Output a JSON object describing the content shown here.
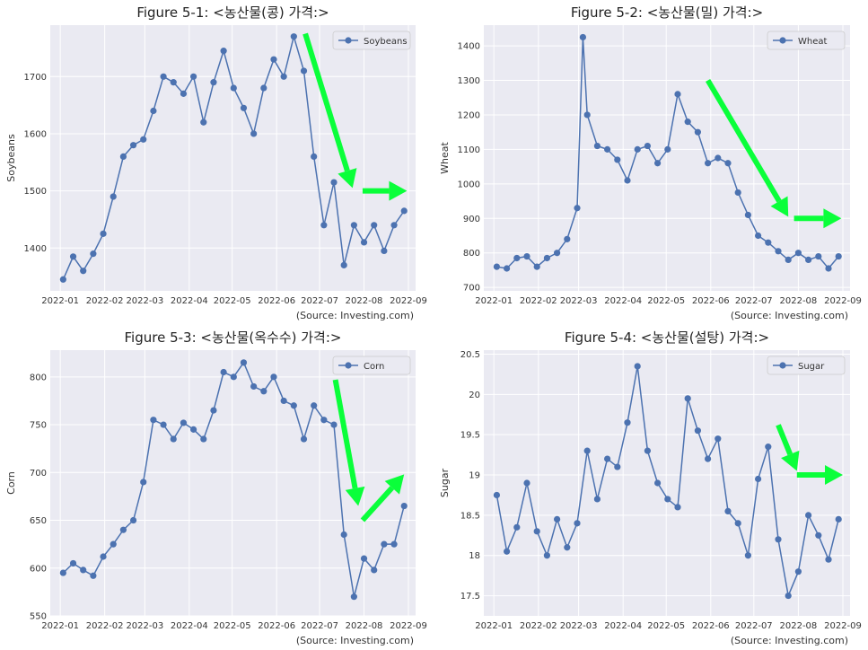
{
  "source_note": "(Source: Investing.com)",
  "x_ticks": [
    "2022-01",
    "2022-02",
    "2022-03",
    "2022-04",
    "2022-05",
    "2022-06",
    "2022-07",
    "2022-08",
    "2022-09"
  ],
  "colors": {
    "line": "#4c72b0",
    "arrow": "#0aff3a",
    "plot_bg": "#eaeaf2",
    "grid": "#ffffff"
  },
  "chart_data": [
    {
      "type": "line",
      "title": "Figure 5-1: <농산물(콩) 가격:>",
      "ylabel": "Soybeans",
      "legend": "Soybeans",
      "legend_placement": "top-right",
      "ylim": [
        1325,
        1790
      ],
      "yticks": [
        1400,
        1500,
        1600,
        1700
      ],
      "x": [
        "2022-01-03",
        "2022-01-10",
        "2022-01-17",
        "2022-01-24",
        "2022-01-31",
        "2022-02-07",
        "2022-02-14",
        "2022-02-21",
        "2022-02-28",
        "2022-03-07",
        "2022-03-14",
        "2022-03-21",
        "2022-03-28",
        "2022-04-04",
        "2022-04-11",
        "2022-04-18",
        "2022-04-25",
        "2022-05-02",
        "2022-05-09",
        "2022-05-16",
        "2022-05-23",
        "2022-05-30",
        "2022-06-06",
        "2022-06-13",
        "2022-06-20",
        "2022-06-27",
        "2022-07-04",
        "2022-07-11",
        "2022-07-18",
        "2022-07-25",
        "2022-08-01",
        "2022-08-08",
        "2022-08-15",
        "2022-08-22",
        "2022-08-29"
      ],
      "values": [
        1345,
        1385,
        1360,
        1390,
        1425,
        1490,
        1560,
        1580,
        1590,
        1640,
        1700,
        1690,
        1670,
        1700,
        1620,
        1690,
        1745,
        1680,
        1645,
        1600,
        1680,
        1730,
        1700,
        1770,
        1710,
        1560,
        1440,
        1515,
        1370,
        1440,
        1410,
        1440,
        1395,
        1440,
        1465
      ],
      "annotations": [
        {
          "kind": "arrow",
          "from": [
            "2022-06-21",
            1775
          ],
          "to": [
            "2022-07-24",
            1505
          ]
        },
        {
          "kind": "arrow",
          "from": [
            "2022-07-31",
            1500
          ],
          "to": [
            "2022-08-31",
            1500
          ]
        }
      ]
    },
    {
      "type": "line",
      "title": "Figure 5-2: <농산물(밀) 가격:>",
      "ylabel": "Wheat",
      "legend": "Wheat",
      "legend_placement": "top-right",
      "ylim": [
        690,
        1460
      ],
      "yticks": [
        700,
        800,
        900,
        1000,
        1100,
        1200,
        1300,
        1400
      ],
      "x": [
        "2022-01-03",
        "2022-01-10",
        "2022-01-17",
        "2022-01-24",
        "2022-01-31",
        "2022-02-07",
        "2022-02-14",
        "2022-02-21",
        "2022-02-28",
        "2022-03-04",
        "2022-03-07",
        "2022-03-14",
        "2022-03-21",
        "2022-03-28",
        "2022-04-04",
        "2022-04-11",
        "2022-04-18",
        "2022-04-25",
        "2022-05-02",
        "2022-05-09",
        "2022-05-16",
        "2022-05-23",
        "2022-05-30",
        "2022-06-06",
        "2022-06-13",
        "2022-06-20",
        "2022-06-27",
        "2022-07-04",
        "2022-07-11",
        "2022-07-18",
        "2022-07-25",
        "2022-08-01",
        "2022-08-08",
        "2022-08-15",
        "2022-08-22",
        "2022-08-29"
      ],
      "values": [
        760,
        755,
        785,
        790,
        760,
        785,
        800,
        840,
        930,
        1425,
        1200,
        1110,
        1100,
        1070,
        1010,
        1100,
        1110,
        1060,
        1100,
        1260,
        1180,
        1150,
        1060,
        1075,
        1060,
        975,
        910,
        850,
        830,
        805,
        780,
        800,
        780,
        790,
        755,
        790
      ],
      "annotations": [
        {
          "kind": "arrow",
          "from": [
            "2022-05-30",
            1300
          ],
          "to": [
            "2022-07-25",
            905
          ]
        },
        {
          "kind": "arrow",
          "from": [
            "2022-07-29",
            900
          ],
          "to": [
            "2022-08-31",
            900
          ]
        }
      ]
    },
    {
      "type": "line",
      "title": "Figure 5-3: <농산물(옥수수) 가격:>",
      "ylabel": "Corn",
      "legend": "Corn",
      "legend_placement": "top-right",
      "ylim": [
        550,
        828
      ],
      "yticks": [
        550,
        600,
        650,
        700,
        750,
        800
      ],
      "x": [
        "2022-01-03",
        "2022-01-10",
        "2022-01-17",
        "2022-01-24",
        "2022-01-31",
        "2022-02-07",
        "2022-02-14",
        "2022-02-21",
        "2022-02-28",
        "2022-03-07",
        "2022-03-14",
        "2022-03-21",
        "2022-03-28",
        "2022-04-04",
        "2022-04-11",
        "2022-04-18",
        "2022-04-25",
        "2022-05-02",
        "2022-05-09",
        "2022-05-16",
        "2022-05-23",
        "2022-05-30",
        "2022-06-06",
        "2022-06-13",
        "2022-06-20",
        "2022-06-27",
        "2022-07-04",
        "2022-07-11",
        "2022-07-18",
        "2022-07-25",
        "2022-08-01",
        "2022-08-08",
        "2022-08-15",
        "2022-08-22",
        "2022-08-29"
      ],
      "values": [
        595,
        605,
        598,
        592,
        612,
        625,
        640,
        650,
        690,
        755,
        750,
        735,
        752,
        745,
        735,
        765,
        805,
        800,
        815,
        790,
        785,
        800,
        775,
        770,
        735,
        770,
        755,
        750,
        635,
        570,
        610,
        598,
        625,
        625,
        665
      ],
      "annotations": [
        {
          "kind": "arrow",
          "from": [
            "2022-07-12",
            797
          ],
          "to": [
            "2022-07-28",
            665
          ]
        },
        {
          "kind": "arrow",
          "from": [
            "2022-07-31",
            650
          ],
          "to": [
            "2022-08-29",
            698
          ]
        }
      ]
    },
    {
      "type": "line",
      "title": "Figure 5-4: <농산물(설탕) 가격:>",
      "ylabel": "Sugar",
      "legend": "Sugar",
      "legend_placement": "top-right",
      "ylim": [
        17.25,
        20.55
      ],
      "yticks": [
        17.5,
        18.0,
        18.5,
        19.0,
        19.5,
        20.0,
        20.5
      ],
      "x": [
        "2022-01-03",
        "2022-01-10",
        "2022-01-17",
        "2022-01-24",
        "2022-01-31",
        "2022-02-07",
        "2022-02-14",
        "2022-02-21",
        "2022-02-28",
        "2022-03-07",
        "2022-03-14",
        "2022-03-21",
        "2022-03-28",
        "2022-04-04",
        "2022-04-11",
        "2022-04-18",
        "2022-04-25",
        "2022-05-02",
        "2022-05-09",
        "2022-05-16",
        "2022-05-23",
        "2022-05-30",
        "2022-06-06",
        "2022-06-13",
        "2022-06-20",
        "2022-06-27",
        "2022-07-04",
        "2022-07-11",
        "2022-07-18",
        "2022-07-25",
        "2022-08-01",
        "2022-08-08",
        "2022-08-15",
        "2022-08-22",
        "2022-08-29"
      ],
      "values": [
        18.75,
        18.05,
        18.35,
        18.9,
        18.3,
        18.0,
        18.45,
        18.1,
        18.4,
        19.3,
        18.7,
        19.2,
        19.1,
        19.65,
        20.35,
        19.3,
        18.9,
        18.7,
        18.6,
        19.95,
        19.55,
        19.2,
        19.45,
        18.55,
        18.4,
        18.0,
        18.95,
        19.35,
        18.2,
        17.5,
        17.8,
        18.5,
        18.25,
        17.95,
        18.45
      ],
      "annotations": [
        {
          "kind": "arrow",
          "from": [
            "2022-07-18",
            19.62
          ],
          "to": [
            "2022-07-31",
            19.05
          ]
        },
        {
          "kind": "arrow",
          "from": [
            "2022-07-31",
            19.0
          ],
          "to": [
            "2022-09-01",
            19.0
          ]
        }
      ]
    }
  ]
}
